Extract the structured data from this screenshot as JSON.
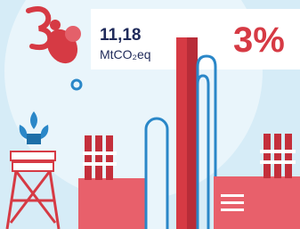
{
  "stat": {
    "value": "11,18",
    "unit": "MtCO₂eq",
    "share": "3%"
  }
}
